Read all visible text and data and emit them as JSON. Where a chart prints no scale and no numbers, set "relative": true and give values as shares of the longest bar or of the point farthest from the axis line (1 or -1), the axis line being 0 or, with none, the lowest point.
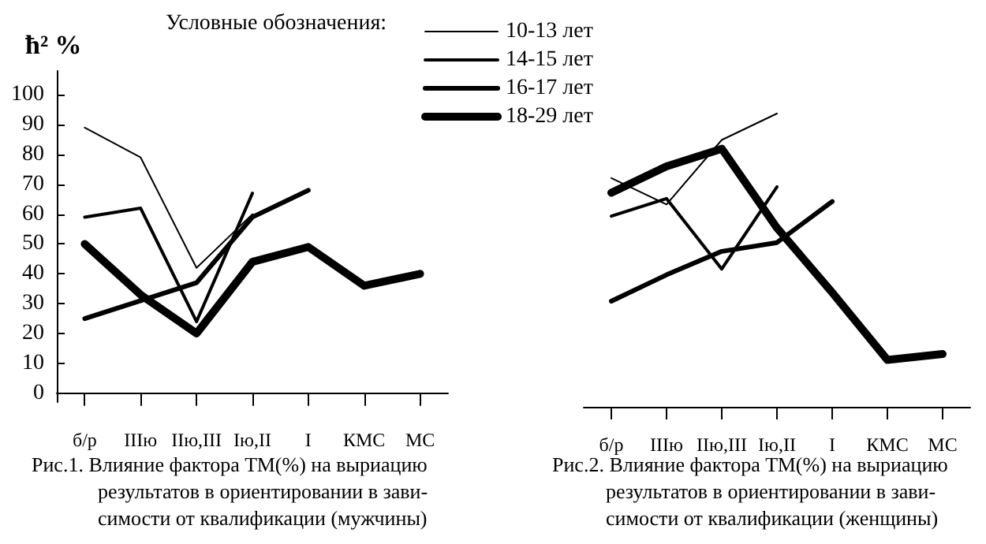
{
  "chart_data": [
    {
      "type": "line",
      "ylabel": "ħ² %",
      "legend_title": "Условные обозначения:",
      "legend": "top",
      "marker": "none",
      "line_style": "solid",
      "categories": [
        "б/р",
        "IIIю",
        "IIю,III",
        "Iю,II",
        "I",
        "КМС",
        "МС"
      ],
      "ylim": [
        -3,
        108
      ],
      "yticks": [
        0,
        10,
        20,
        30,
        40,
        50,
        60,
        70,
        80,
        90,
        100
      ],
      "series": [
        {
          "name": "10-13 лет",
          "color": "#000000",
          "values": [
            89,
            79,
            42,
            60,
            null,
            null,
            null
          ]
        },
        {
          "name": "14-15 лет",
          "color": "#000000",
          "values": [
            59,
            62,
            24,
            67,
            null,
            null,
            null
          ]
        },
        {
          "name": "16-17 лет",
          "color": "#000000",
          "values": [
            25,
            31,
            37,
            59,
            68,
            null,
            null
          ]
        },
        {
          "name": "18-29 лет",
          "color": "#000000",
          "values": [
            50,
            33,
            20,
            44,
            49,
            36,
            40
          ]
        }
      ],
      "annotations": [
        "Рис.1. Влияние фактора ТМ(%) на выриацию\nрезультатов в ориентировании в зави-\nсимости от квалификации (мужчины)"
      ]
    },
    {
      "type": "line",
      "marker": "none",
      "line_style": "solid",
      "tick_labels": "x",
      "relative": true,
      "categories": [
        "б/р",
        "IIIю",
        "IIю,III",
        "Iю,II",
        "I",
        "КМС",
        "МС"
      ],
      "series": [
        {
          "color": "#000000",
          "values": [
            0.78,
            0.69,
            0.91,
            1,
            null,
            null,
            null
          ]
        },
        {
          "color": "#000000",
          "values": [
            0.65,
            0.71,
            0.47,
            0.75,
            null,
            null,
            null
          ]
        },
        {
          "color": "#000000",
          "values": [
            0.36,
            0.45,
            0.53,
            0.56,
            0.7,
            null,
            null
          ]
        },
        {
          "color": "#000000",
          "values": [
            0.73,
            0.82,
            0.88,
            0.61,
            0.39,
            0.16,
            0.18
          ]
        }
      ],
      "annotations": [
        "Рис.2. Влияние фактора ТМ(%) на выриацию\nрезультатов в ориентировании в зави-\nсимости от квалификации (женщины)"
      ]
    }
  ]
}
